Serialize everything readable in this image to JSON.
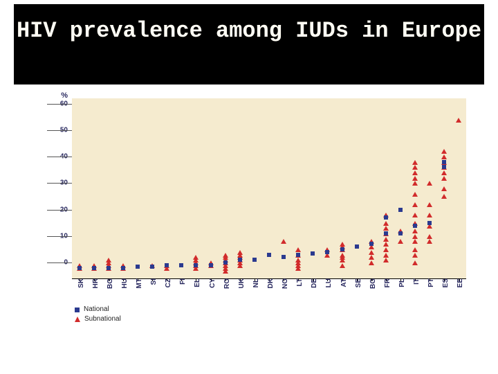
{
  "title": "HIV prevalence among IUDs in Europe",
  "title_fontsize": 32,
  "chart": {
    "type": "scatter",
    "plot_background": "#f5ebcf",
    "axis_label_color": "#2a2a60",
    "national_color": "#2b3a8f",
    "subnational_color": "#d12b2b",
    "y_unit_label": "%",
    "ylim": [
      -6,
      62
    ],
    "yticks": [
      0,
      10,
      20,
      30,
      40,
      50,
      60
    ],
    "categories": [
      "SK",
      "HR",
      "BG",
      "HU",
      "MT",
      "SI",
      "CZ",
      "FI",
      "EL",
      "CY",
      "RO",
      "UK",
      "NL",
      "DK",
      "NO",
      "LT",
      "DE",
      "LU",
      "AT",
      "SE",
      "BG",
      "FR",
      "PL",
      "IT",
      "PT",
      "ES",
      "EE"
    ],
    "series": {
      "national": {
        "marker": "square",
        "data": {
          "SK": [
            -2
          ],
          "HR": [
            -2
          ],
          "BG": [
            -2
          ],
          "HU": [
            -2
          ],
          "MT": [
            -1.5
          ],
          "SI": [
            -1.5
          ],
          "CZ": [
            -1
          ],
          "FI": [
            -1
          ],
          "EL": [
            -1
          ],
          "CY": [
            -1
          ],
          "RO": [
            0
          ],
          "UK": [
            1
          ],
          "NL": [
            1
          ],
          "DK": [
            3
          ],
          "NO": [
            2
          ],
          "LT": [
            3
          ],
          "DE": [
            3.5
          ],
          "LU": [
            4
          ],
          "AT": [
            5
          ],
          "SE": [
            6
          ],
          "BG2": [
            7
          ],
          "FR": [
            11,
            17
          ],
          "PL": [
            11,
            20
          ],
          "IT": [
            14
          ],
          "PT": [
            15
          ],
          "ES": [
            36,
            38
          ],
          "EE": []
        }
      },
      "subnational": {
        "marker": "triangle",
        "data": {
          "SK": [
            -2,
            -1
          ],
          "HR": [
            -2,
            -1
          ],
          "BG": [
            -2,
            -1,
            0,
            1
          ],
          "HU": [
            -2,
            -1
          ],
          "MT": [],
          "SI": [
            -1
          ],
          "CZ": [
            -2,
            -1
          ],
          "FI": [],
          "EL": [
            -2,
            -1,
            0,
            1,
            2
          ],
          "CY": [
            -1,
            0
          ],
          "RO": [
            -3,
            -2,
            -1,
            0,
            1,
            2,
            3
          ],
          "UK": [
            -1,
            0,
            1,
            2,
            3,
            4
          ],
          "NL": [],
          "DK": [],
          "NO": [
            8
          ],
          "LT": [
            -2,
            -1,
            0,
            1,
            3,
            5
          ],
          "DE": [],
          "LU": [
            3,
            5
          ],
          "AT": [
            -1,
            1,
            2,
            3,
            5,
            6,
            7
          ],
          "SE": [],
          "BG2": [
            0,
            2,
            4,
            6,
            8
          ],
          "FR": [
            1,
            3,
            5,
            7,
            9,
            11,
            13,
            15,
            18
          ],
          "PL": [
            8,
            12
          ],
          "IT": [
            0,
            3,
            5,
            8,
            10,
            12,
            15,
            18,
            22,
            26,
            30,
            32,
            34,
            36,
            38
          ],
          "PT": [
            8,
            10,
            14,
            18,
            22,
            30
          ],
          "ES": [
            25,
            28,
            32,
            34,
            36,
            38,
            40,
            42
          ],
          "EE": [
            54
          ]
        }
      }
    },
    "legend": {
      "national": "National",
      "subnational": "Subnational"
    }
  }
}
